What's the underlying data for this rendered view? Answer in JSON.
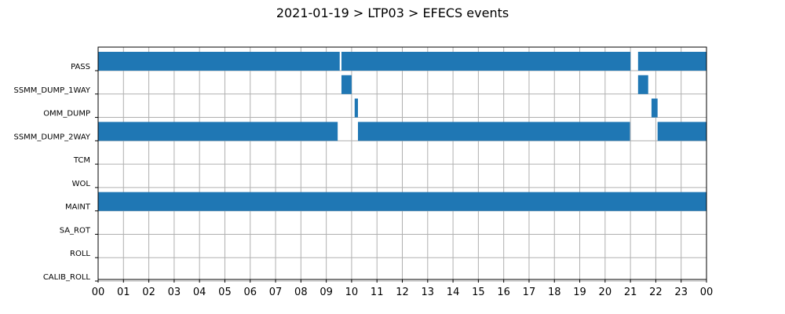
{
  "chart_data": {
    "type": "timeline",
    "title": "2021-01-19 > LTP03 > EFECS events",
    "xlabel": "",
    "ylabel": "",
    "xlim": [
      0,
      24
    ],
    "x_ticks": [
      "00",
      "01",
      "02",
      "03",
      "04",
      "05",
      "06",
      "07",
      "08",
      "09",
      "10",
      "11",
      "12",
      "13",
      "14",
      "15",
      "16",
      "17",
      "18",
      "19",
      "20",
      "21",
      "22",
      "23",
      "00"
    ],
    "categories": [
      "PASS",
      "SSMM_DUMP_1WAY",
      "OMM_DUMP",
      "SSMM_DUMP_2WAY",
      "TCM",
      "WOL",
      "MAINT",
      "SA_ROT",
      "ROLL",
      "CALIB_ROLL"
    ],
    "grid": true,
    "bar_color": "#1f77b4",
    "series": [
      {
        "category": "PASS",
        "intervals": [
          [
            0.0,
            9.53
          ],
          [
            9.6,
            21.0
          ],
          [
            21.3,
            24.0
          ]
        ]
      },
      {
        "category": "SSMM_DUMP_1WAY",
        "intervals": [
          [
            9.6,
            10.0
          ],
          [
            21.3,
            21.7
          ]
        ]
      },
      {
        "category": "OMM_DUMP",
        "intervals": [
          [
            10.12,
            10.25
          ],
          [
            21.83,
            22.07
          ]
        ]
      },
      {
        "category": "SSMM_DUMP_2WAY",
        "intervals": [
          [
            0.0,
            9.45
          ],
          [
            10.25,
            20.98
          ],
          [
            22.07,
            24.0
          ]
        ]
      },
      {
        "category": "TCM",
        "intervals": []
      },
      {
        "category": "WOL",
        "intervals": []
      },
      {
        "category": "MAINT",
        "intervals": [
          [
            0.0,
            24.0
          ]
        ]
      },
      {
        "category": "SA_ROT",
        "intervals": []
      },
      {
        "category": "ROLL",
        "intervals": []
      },
      {
        "category": "CALIB_ROLL",
        "intervals": []
      }
    ]
  }
}
